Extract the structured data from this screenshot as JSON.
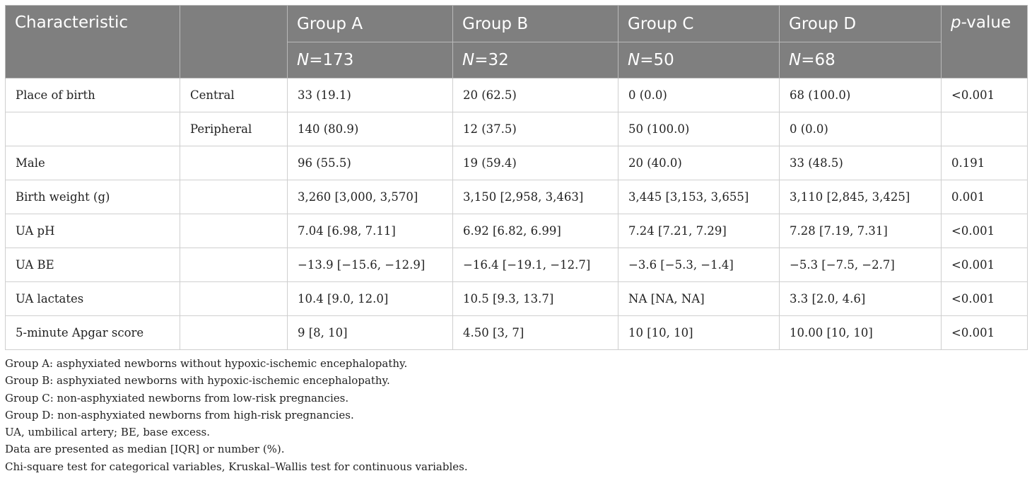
{
  "header": {
    "characteristic": "Characteristic",
    "groups": [
      "Group A",
      "Group B",
      "Group C",
      "Group D"
    ],
    "n_prefix": "N",
    "n_values": [
      "=173",
      "=32",
      "=50",
      "=68"
    ],
    "p_italic": "p",
    "p_rest": "-value"
  },
  "rows": [
    {
      "label": "Place of birth",
      "sub": "Central",
      "a": "33 (19.1)",
      "b": "20 (62.5)",
      "c": "0 (0.0)",
      "d": "68 (100.0)",
      "p": "<0.001"
    },
    {
      "label": "",
      "sub": "Peripheral",
      "a": "140 (80.9)",
      "b": "12 (37.5)",
      "c": "50 (100.0)",
      "d": "0 (0.0)",
      "p": ""
    },
    {
      "label": "Male",
      "sub": "",
      "a": "96 (55.5)",
      "b": "19 (59.4)",
      "c": "20 (40.0)",
      "d": "33 (48.5)",
      "p": "0.191"
    },
    {
      "label": "Birth weight (g)",
      "sub": "",
      "a": "3,260 [3,000, 3,570]",
      "b": "3,150 [2,958, 3,463]",
      "c": "3,445 [3,153, 3,655]",
      "d": "3,110 [2,845, 3,425]",
      "p": "0.001"
    },
    {
      "label": "UA pH",
      "sub": "",
      "a": "7.04 [6.98, 7.11]",
      "b": "6.92 [6.82, 6.99]",
      "c": "7.24 [7.21, 7.29]",
      "d": "7.28 [7.19, 7.31]",
      "p": "<0.001"
    },
    {
      "label": "UA BE",
      "sub": "",
      "a": "−13.9 [−15.6, −12.9]",
      "b": "−16.4 [−19.1, −12.7]",
      "c": "−3.6 [−5.3, −1.4]",
      "d": "−5.3 [−7.5, −2.7]",
      "p": "<0.001"
    },
    {
      "label": "UA lactates",
      "sub": "",
      "a": "10.4 [9.0, 12.0]",
      "b": "10.5 [9.3, 13.7]",
      "c": "NA [NA, NA]",
      "d": "3.3 [2.0, 4.6]",
      "p": "<0.001"
    },
    {
      "label": "5-minute Apgar score",
      "sub": "",
      "a": "9 [8, 10]",
      "b": "4.50 [3, 7]",
      "c": "10 [10, 10]",
      "d": "10.00 [10, 10]",
      "p": "<0.001"
    }
  ],
  "notes": [
    "Group A: asphyxiated newborns without hypoxic-ischemic encephalopathy.",
    "Group B: asphyxiated newborns with hypoxic-ischemic encephalopathy.",
    "Group C: non-asphyxiated newborns from low-risk pregnancies.",
    "Group D: non-asphyxiated newborns from high-risk pregnancies.",
    "UA, umbilical artery; BE, base excess.",
    "Data are presented as median [IQR] or number (%).",
    "Chi-square test for categorical variables, Kruskal–Wallis test for continuous variables."
  ]
}
